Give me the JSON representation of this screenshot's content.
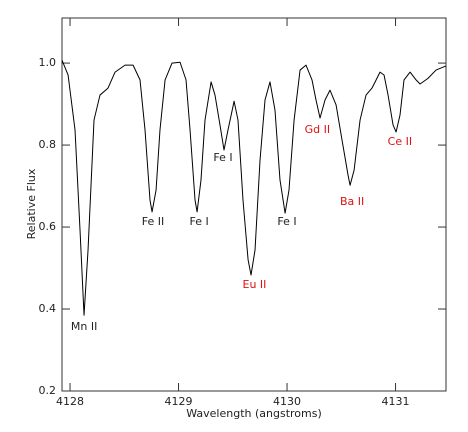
{
  "chart_data": {
    "type": "line",
    "xlabel": "Wavelength (angstroms)",
    "ylabel": "Relative Flux",
    "xlim": [
      4127.926,
      4131.465
    ],
    "ylim": [
      0.2,
      1.11
    ],
    "xticks": [
      4128,
      4129,
      4130,
      4131
    ],
    "yticks": [
      {
        "value": 0.2,
        "label": "0.2"
      },
      {
        "value": 0.4,
        "label": "0.4"
      },
      {
        "value": 0.6,
        "label": "0.6"
      },
      {
        "value": 0.8,
        "label": "0.8"
      },
      {
        "value": 1.0,
        "label": "1.0"
      }
    ],
    "series": [
      {
        "color": "#000000",
        "x": [
          4127.926,
          4127.982,
          4128.046,
          4128.092,
          4128.129,
          4128.166,
          4128.221,
          4128.276,
          4128.35,
          4128.415,
          4128.507,
          4128.581,
          4128.645,
          4128.691,
          4128.737,
          4128.756,
          4128.793,
          4128.829,
          4128.876,
          4128.94,
          4129.014,
          4129.069,
          4129.106,
          4129.152,
          4129.171,
          4129.207,
          4129.244,
          4129.3,
          4129.336,
          4129.382,
          4129.419,
          4129.456,
          4129.512,
          4129.548,
          4129.594,
          4129.641,
          4129.668,
          4129.705,
          4129.751,
          4129.797,
          4129.843,
          4129.889,
          4129.935,
          4129.982,
          4130.018,
          4130.065,
          4130.12,
          4130.175,
          4130.23,
          4130.267,
          4130.304,
          4130.35,
          4130.396,
          4130.452,
          4130.507,
          4130.562,
          4130.581,
          4130.618,
          4130.673,
          4130.728,
          4130.783,
          4130.857,
          4130.894,
          4130.931,
          4130.977,
          4131.005,
          4131.041,
          4131.078,
          4131.134,
          4131.189,
          4131.226,
          4131.3,
          4131.373,
          4131.465
        ],
        "values": [
          1.007,
          0.971,
          0.837,
          0.593,
          0.385,
          0.544,
          0.861,
          0.922,
          0.939,
          0.978,
          0.995,
          0.995,
          0.959,
          0.837,
          0.666,
          0.637,
          0.69,
          0.837,
          0.959,
          1.0,
          1.002,
          0.959,
          0.837,
          0.666,
          0.637,
          0.715,
          0.861,
          0.954,
          0.922,
          0.849,
          0.788,
          0.837,
          0.907,
          0.861,
          0.666,
          0.52,
          0.483,
          0.544,
          0.763,
          0.91,
          0.954,
          0.885,
          0.715,
          0.634,
          0.69,
          0.861,
          0.983,
          0.995,
          0.959,
          0.91,
          0.866,
          0.91,
          0.934,
          0.898,
          0.812,
          0.727,
          0.702,
          0.739,
          0.861,
          0.922,
          0.939,
          0.978,
          0.971,
          0.922,
          0.849,
          0.832,
          0.873,
          0.959,
          0.978,
          0.959,
          0.949,
          0.963,
          0.983,
          0.993
        ]
      }
    ],
    "annotations": [
      {
        "text": "Mn II",
        "x": 4128.13,
        "y": 0.356,
        "color": "#222222"
      },
      {
        "text": "Fe II",
        "x": 4128.765,
        "y": 0.612,
        "color": "#222222"
      },
      {
        "text": "Fe I",
        "x": 4129.19,
        "y": 0.612,
        "color": "#222222"
      },
      {
        "text": "Fe I",
        "x": 4129.41,
        "y": 0.768,
        "color": "#222222"
      },
      {
        "text": "Eu II",
        "x": 4129.7,
        "y": 0.459,
        "color": "#dd1111"
      },
      {
        "text": "Fe I",
        "x": 4130.0,
        "y": 0.612,
        "color": "#222222"
      },
      {
        "text": "Gd II",
        "x": 4130.28,
        "y": 0.837,
        "color": "#dd1111"
      },
      {
        "text": "Ba II",
        "x": 4130.6,
        "y": 0.661,
        "color": "#dd1111"
      },
      {
        "text": "Ce II",
        "x": 4131.04,
        "y": 0.807,
        "color": "#dd1111"
      }
    ]
  }
}
